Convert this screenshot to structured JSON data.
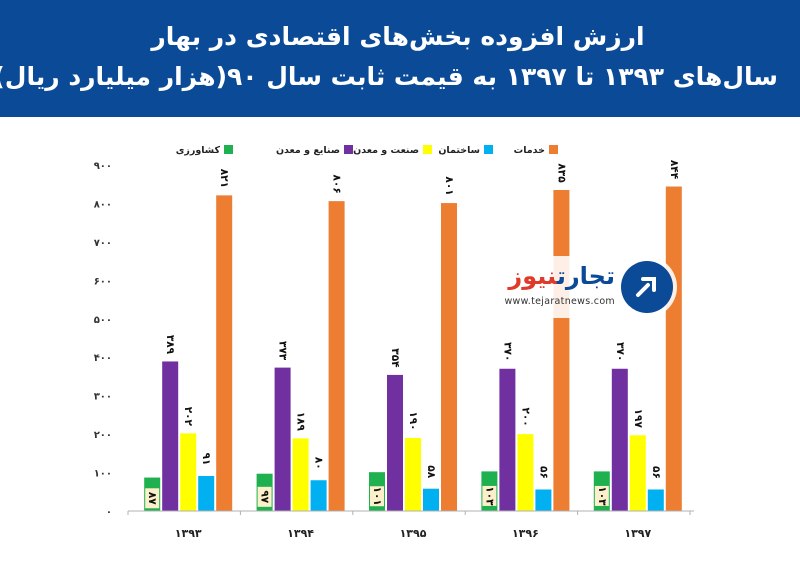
{
  "header": {
    "title_line1": "ارزش افزوده بخش‌های اقتصادی  در بهار",
    "title_line2": "سال‌های ۱۳۹۳ تا ۱۳۹۷  به قیمت ثابت سال ۹۰(هزار میلیارد ریال)"
  },
  "watermark": {
    "name_part1": "تجارت",
    "name_part2": "نیوز",
    "url": "www.tejaratnews.com",
    "icon": "tejaratnews-logo-icon"
  },
  "colors": {
    "header_bg": "#0a4a96",
    "agriculture": "#1fb050",
    "industry_mining": "#7030a0",
    "industry": "#ffff00",
    "construction": "#00b0f0",
    "services": "#ed7d31"
  },
  "chart_data": {
    "type": "bar",
    "title": "",
    "xlabel": "",
    "ylabel": "",
    "ylim": [
      0,
      900
    ],
    "yticks": [
      "۰",
      "۱۰۰",
      "۲۰۰",
      "۳۰۰",
      "۴۰۰",
      "۵۰۰",
      "۶۰۰",
      "۷۰۰",
      "۸۰۰",
      "۹۰۰"
    ],
    "categories": [
      "۱۳۹۳",
      "۱۳۹۴",
      "۱۳۹۵",
      "۱۳۹۶",
      "۱۳۹۷"
    ],
    "legend_position": "top",
    "grid": false,
    "series": [
      {
        "name": "کشاورزی",
        "color": "#1fb050",
        "values": [
          87,
          97,
          101,
          103,
          103
        ],
        "labels": [
          "۸۷",
          "۹۷",
          "۱۰۱",
          "۱۰۳",
          "۱۰۳"
        ]
      },
      {
        "name": "صنایع و معدن",
        "color": "#7030a0",
        "values": [
          389,
          373,
          354,
          370,
          370
        ],
        "labels": [
          "۳۸۹",
          "۳۷۳",
          "۳۵۴",
          "۳۷۰",
          "۳۷۰"
        ]
      },
      {
        "name": "صنعت و معدن",
        "color": "#ffff00",
        "values": [
          202,
          189,
          190,
          200,
          197
        ],
        "labels": [
          "۲۰۲",
          "۱۸۹",
          "۱۹۰",
          "۲۰۰",
          "۱۹۷"
        ]
      },
      {
        "name": "ساختمان",
        "color": "#00b0f0",
        "values": [
          91,
          80,
          58,
          56,
          56
        ],
        "labels": [
          "۹۱",
          "۸۰",
          "۵۸",
          "۵۶",
          "۵۶"
        ]
      },
      {
        "name": "خدمات",
        "color": "#ed7d31",
        "values": [
          821,
          806,
          801,
          835,
          844
        ],
        "labels": [
          "۸۲۱",
          "۸۰۶",
          "۸۰۱",
          "۸۳۵",
          "۸۴۴"
        ]
      }
    ]
  }
}
